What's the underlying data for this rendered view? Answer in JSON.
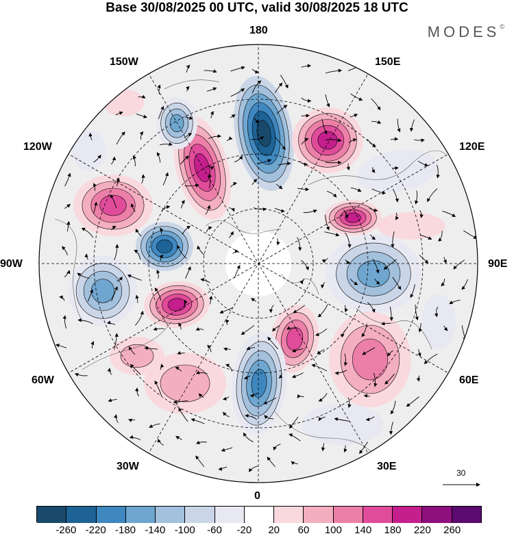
{
  "title": "Base 30/08/2025 00 UTC, valid 30/08/2025 18 UTC",
  "brand": {
    "name": "MODES",
    "mark": "©"
  },
  "longitude_labels": [
    "180",
    "150E",
    "120E",
    "90E",
    "60E",
    "30E",
    "0",
    "30W",
    "60W",
    "90W",
    "120W",
    "150W"
  ],
  "reference_vector": {
    "label": "30"
  },
  "colorbar": {
    "colors": [
      "#1a4a6b",
      "#1e6396",
      "#3f87bf",
      "#6ea6cf",
      "#a3c0dd",
      "#cad6e8",
      "#e8e8f2",
      "#ffffff",
      "#f9d9de",
      "#f3aec0",
      "#ec7fa8",
      "#e04c9a",
      "#c41f8c",
      "#8e0f7e",
      "#5b0a70"
    ],
    "ticks": [
      "-260",
      "-220",
      "-180",
      "-140",
      "-100",
      "-60",
      "-20",
      "20",
      "60",
      "100",
      "140",
      "180",
      "220",
      "260"
    ]
  },
  "icons": {
    "arrow": "vector-arrow-icon"
  }
}
